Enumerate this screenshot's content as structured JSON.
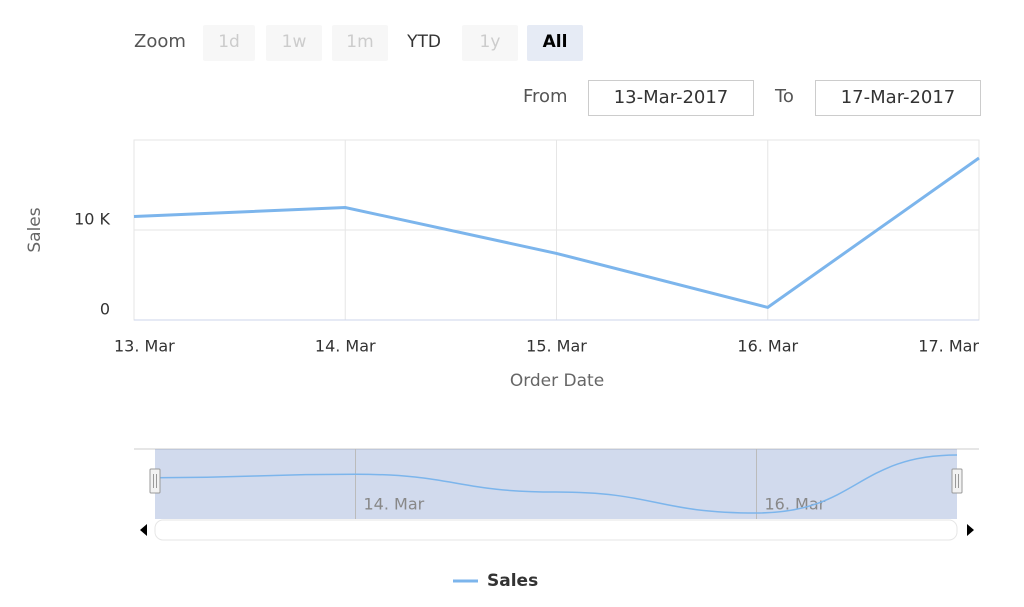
{
  "chart_data": {
    "type": "line",
    "categories": [
      "13. Mar",
      "14. Mar",
      "15. Mar",
      "16. Mar",
      "17. Mar"
    ],
    "series": [
      {
        "name": "Sales",
        "color": "#7cb5ec",
        "values": [
          11500,
          12500,
          7400,
          1400,
          18000
        ]
      }
    ],
    "ylim": [
      0,
      20000
    ],
    "yticks": [
      0,
      {
        "value": 10000,
        "label": "10 K"
      }
    ],
    "x_label": "Order Date",
    "y_label": "Sales",
    "grid": true,
    "range_selector": {
      "label": "Zoom",
      "buttons": [
        {
          "label": "1d",
          "enabled": false
        },
        {
          "label": "1w",
          "enabled": false
        },
        {
          "label": "1m",
          "enabled": false
        },
        {
          "label": "YTD",
          "enabled": true
        },
        {
          "label": "1y",
          "enabled": false
        },
        {
          "label": "All",
          "enabled": true,
          "selected": true
        }
      ],
      "from_label": "From",
      "from": "13-Mar-2017",
      "to_label": "To",
      "to": "17-Mar-2017"
    },
    "navigator": {
      "labels": [
        "14. Mar",
        "16. Mar"
      ]
    }
  }
}
